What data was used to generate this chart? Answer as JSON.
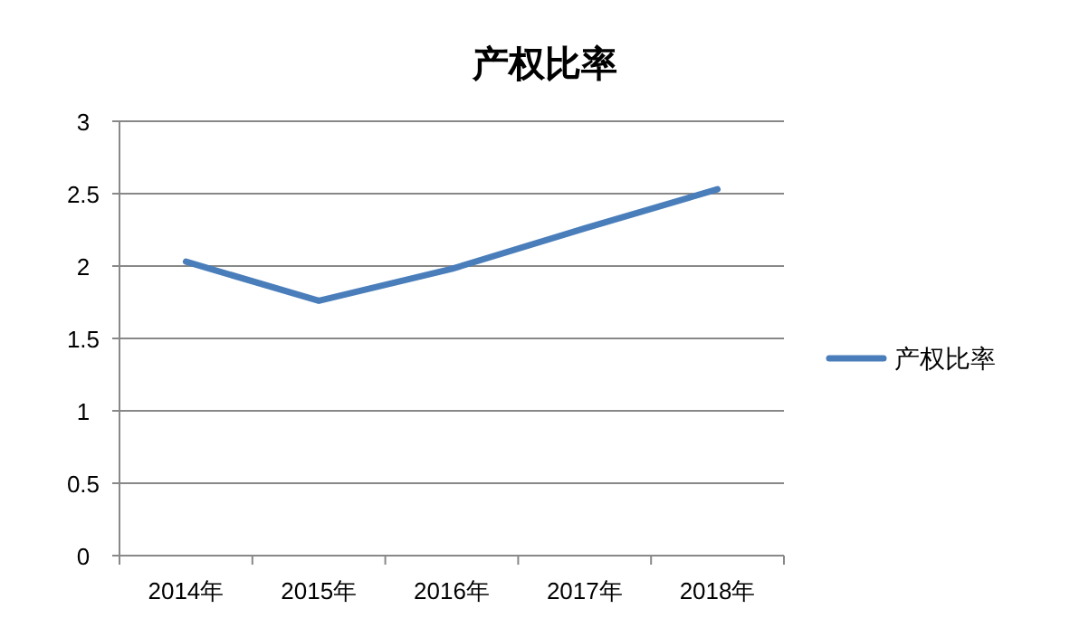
{
  "chart_data": {
    "type": "line",
    "title": "产权比率",
    "categories": [
      "2014年",
      "2015年",
      "2016年",
      "2017年",
      "2018年"
    ],
    "series": [
      {
        "name": "产权比率",
        "color": "#4a7ebb",
        "values": [
          2.03,
          1.76,
          1.98,
          2.26,
          2.53
        ]
      }
    ],
    "ylim": [
      0,
      3
    ],
    "yticks": [
      0,
      0.5,
      1,
      1.5,
      2,
      2.5,
      3
    ],
    "grid": "y",
    "legend": "right",
    "marker": "none",
    "line_style": "solid"
  }
}
